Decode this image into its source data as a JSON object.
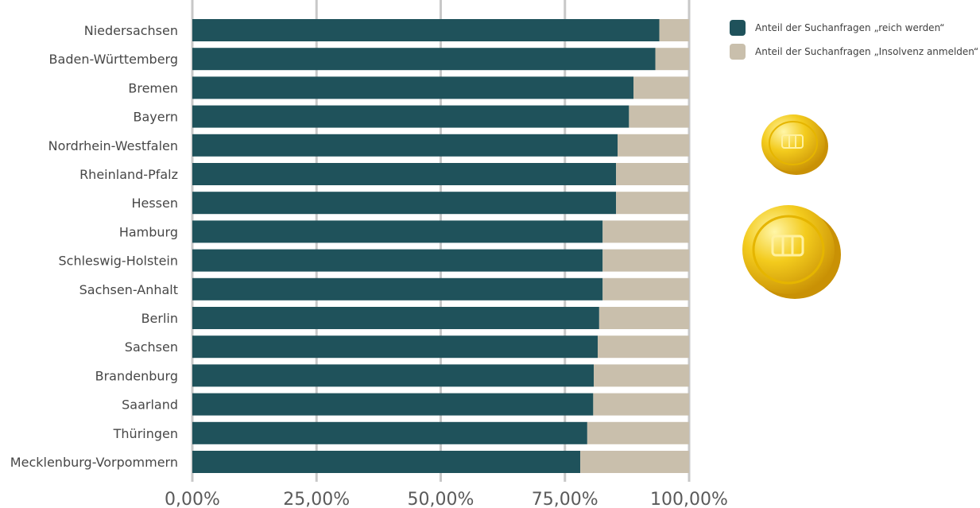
{
  "colors": {
    "primary": "#1f525b",
    "secondary": "#c9bfac",
    "grid": "#c8c8c8",
    "coin": "#f2c418"
  },
  "legend": {
    "items": [
      {
        "label": "Anteil der Suchanfragen „reich werden“",
        "color": "#1f525b"
      },
      {
        "label": "Anteil der Suchanfragen „Insolvenz anmelden“",
        "color": "#c9bfac"
      }
    ]
  },
  "icons": {
    "coin_small": "gold-coin-icon",
    "coin_large": "gold-coin-icon"
  },
  "chart_data": {
    "type": "bar",
    "orientation": "horizontal",
    "stacked": true,
    "percent_stacked": true,
    "categories": [
      "Niedersachsen",
      "Baden-Württemberg",
      "Bremen",
      "Bayern",
      "Nordrhein-Westfalen",
      "Rheinland-Pfalz",
      "Hessen",
      "Hamburg",
      "Schleswig-Holstein",
      "Sachsen-Anhalt",
      "Berlin",
      "Sachsen",
      "Brandenburg",
      "Saarland",
      "Thüringen",
      "Mecklenburg-Vorpommern"
    ],
    "series": [
      {
        "name": "Anteil der Suchanfragen „reich werden“",
        "values": [
          94,
          93.2,
          88.8,
          87.9,
          85.6,
          85.3,
          85.3,
          82.6,
          82.6,
          82.6,
          81.9,
          81.6,
          80.8,
          80.7,
          79.5,
          78.1
        ]
      },
      {
        "name": "Anteil der Suchanfragen „Insolvenz anmelden“",
        "values": [
          6,
          6.8,
          11.2,
          12.1,
          14.4,
          14.7,
          14.7,
          17.4,
          17.4,
          17.4,
          18.1,
          18.4,
          19.2,
          19.3,
          20.5,
          21.9
        ]
      }
    ],
    "x_ticks": [
      "0,00%",
      "25,00%",
      "50,00%",
      "75,00%",
      "100,00%"
    ],
    "xlim": [
      0,
      100
    ],
    "grid": true,
    "legend_position": "top-right"
  }
}
